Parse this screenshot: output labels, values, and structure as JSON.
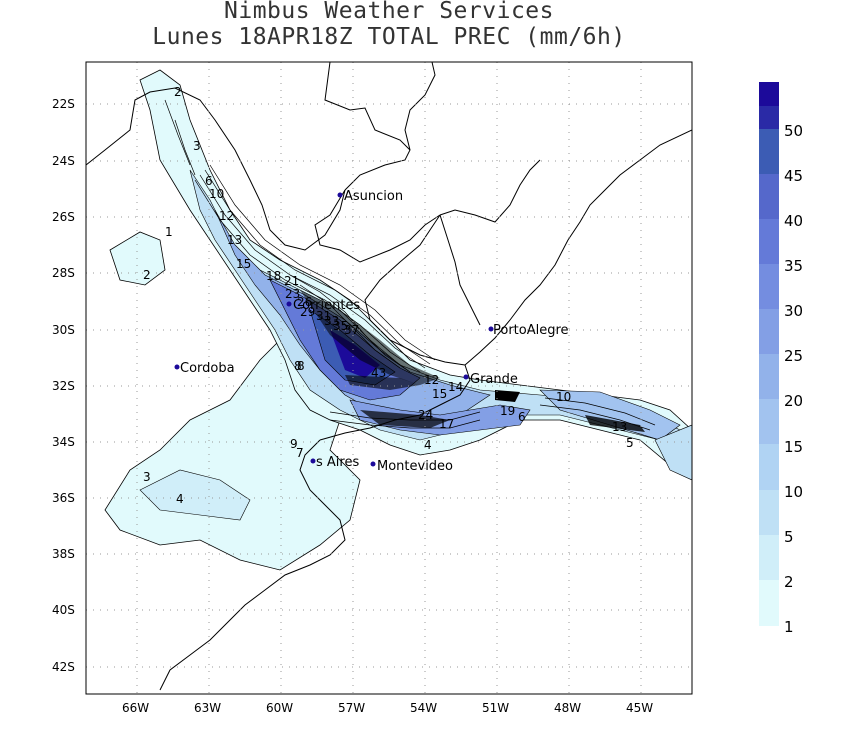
{
  "title": {
    "line1": "Nimbus Weather Services",
    "line2": "Lunes 18APR18Z TOTAL PREC (mm/6h)"
  },
  "lat_labels": [
    "22S",
    "24S",
    "26S",
    "28S",
    "30S",
    "32S",
    "34S",
    "36S",
    "38S",
    "40S",
    "42S"
  ],
  "lon_labels": [
    "66W",
    "63W",
    "60W",
    "57W",
    "54W",
    "51W",
    "48W",
    "45W"
  ],
  "cities": [
    {
      "name": "Asuncion"
    },
    {
      "name": "Cordoba"
    },
    {
      "name": "PortoAlegre"
    },
    {
      "name": "Montevideo"
    },
    {
      "name": "s Aires"
    },
    {
      "name": "Corrientes"
    },
    {
      "name": "Grande"
    }
  ],
  "legend": {
    "labels": [
      "1",
      "2",
      "5",
      "10",
      "15",
      "20",
      "25",
      "30",
      "35",
      "40",
      "45",
      "50"
    ],
    "colors": [
      "#e1fafc",
      "#d0eef9",
      "#bfe0f5",
      "#b0d3f3",
      "#a2c3ef",
      "#92b2ea",
      "#839fe5",
      "#748de0",
      "#647ad8",
      "#5568cb",
      "#3c5cb4",
      "#2a2aa6",
      "#1c0a9a"
    ]
  },
  "contour_labels": [
    "2",
    "3",
    "4",
    "6",
    "8",
    "10",
    "12",
    "13",
    "15",
    "18",
    "21",
    "23",
    "26",
    "29",
    "31",
    "33",
    "35",
    "37",
    "43",
    "1",
    "14",
    "12",
    "9",
    "8",
    "7",
    "6",
    "5",
    "4",
    "3",
    "2",
    "24",
    "17",
    "15",
    "19",
    "10",
    "13"
  ]
}
